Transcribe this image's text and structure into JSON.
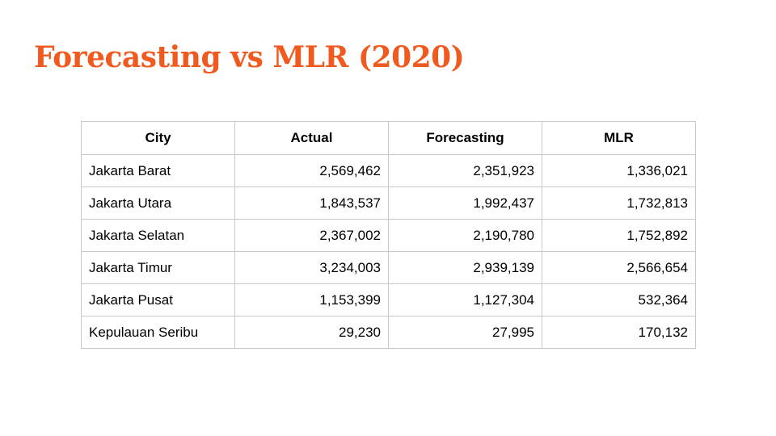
{
  "slide": {
    "title": "Forecasting vs MLR (2020)",
    "title_color": "#f05a1e"
  },
  "table": {
    "headers": [
      "City",
      "Actual",
      "Forecasting",
      "MLR"
    ],
    "rows": [
      {
        "city": "Jakarta Barat",
        "actual": "2,569,462",
        "forecasting": "2,351,923",
        "mlr": "1,336,021"
      },
      {
        "city": "Jakarta Utara",
        "actual": "1,843,537",
        "forecasting": "1,992,437",
        "mlr": "1,732,813"
      },
      {
        "city": "Jakarta Selatan",
        "actual": "2,367,002",
        "forecasting": "2,190,780",
        "mlr": "1,752,892"
      },
      {
        "city": "Jakarta Timur",
        "actual": "3,234,003",
        "forecasting": "2,939,139",
        "mlr": "2,566,654"
      },
      {
        "city": "Jakarta Pusat",
        "actual": "1,153,399",
        "forecasting": "1,127,304",
        "mlr": "532,364"
      },
      {
        "city": "Kepulauan Seribu",
        "actual": "29,230",
        "forecasting": "27,995",
        "mlr": "170,132"
      }
    ]
  }
}
